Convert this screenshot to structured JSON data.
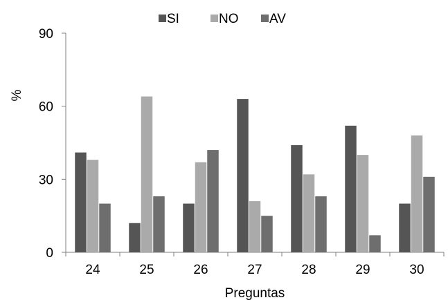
{
  "chart_data": {
    "type": "bar",
    "categories": [
      "24",
      "25",
      "26",
      "27",
      "28",
      "29",
      "30"
    ],
    "series": [
      {
        "name": "SI",
        "color": "#555555",
        "values": [
          41,
          12,
          20,
          63,
          44,
          52,
          20
        ]
      },
      {
        "name": "NO",
        "color": "#aaaaaa",
        "values": [
          38,
          64,
          37,
          21,
          32,
          40,
          48
        ]
      },
      {
        "name": "AV",
        "color": "#6e6e6e",
        "values": [
          20,
          23,
          42,
          15,
          23,
          7,
          31
        ]
      }
    ],
    "title": "",
    "xlabel": "Preguntas",
    "ylabel": "%",
    "ylim": [
      0,
      90
    ],
    "yticks": [
      0,
      30,
      60,
      90
    ],
    "grid": false,
    "legend_position": "top"
  }
}
